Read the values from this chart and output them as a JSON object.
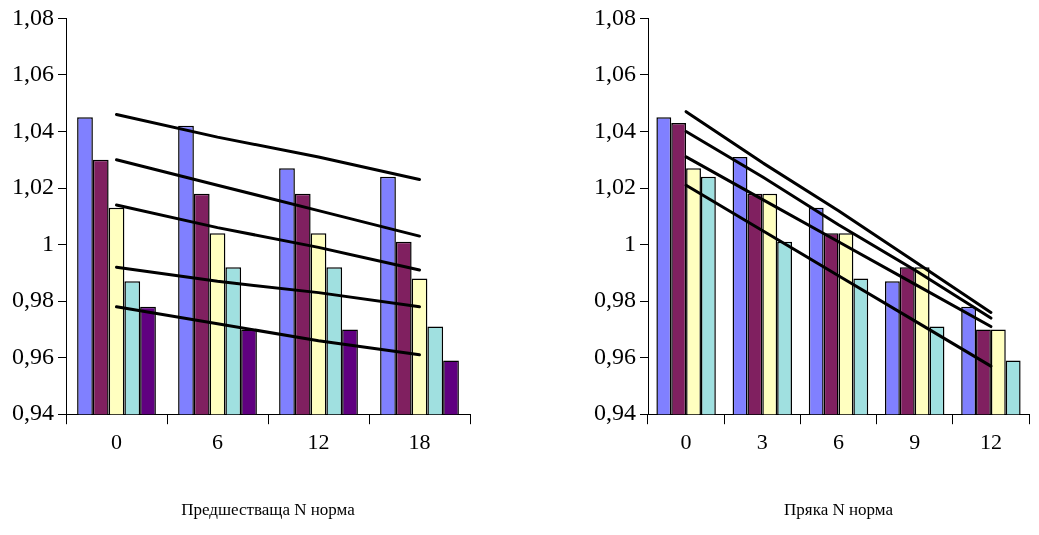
{
  "chart_data": [
    {
      "type": "bar",
      "xlabel": "Предшестваща N норма",
      "categories": [
        "0",
        "6",
        "12",
        "18"
      ],
      "ylim": [
        0.94,
        1.08
      ],
      "yticks": [
        {
          "value": 0.94,
          "label": "0,94"
        },
        {
          "value": 0.96,
          "label": "0,96"
        },
        {
          "value": 0.98,
          "label": "0,98"
        },
        1,
        {
          "value": 1.02,
          "label": "1,02"
        },
        {
          "value": 1.04,
          "label": "1,04"
        },
        {
          "value": 1.06,
          "label": "1,06"
        },
        {
          "value": 1.08,
          "label": "1,08"
        }
      ],
      "grid": false,
      "legend": false,
      "series": [
        {
          "color": "#8080ff",
          "values": [
            1.045,
            1.042,
            1.027,
            1.024
          ]
        },
        {
          "color": "#802060",
          "values": [
            1.03,
            1.018,
            1.018,
            1.001
          ]
        },
        {
          "color": "#ffffc0",
          "values": [
            1.013,
            1.004,
            1.004,
            0.988
          ]
        },
        {
          "color": "#a0e0e0",
          "values": [
            0.987,
            0.992,
            0.992,
            0.971
          ]
        },
        {
          "color": "#600080",
          "values": [
            0.978,
            0.97,
            0.97,
            0.959
          ]
        },
        {
          "type": "line",
          "color": "#000000",
          "values": [
            1.046,
            1.038,
            1.031,
            1.023
          ]
        },
        {
          "type": "line",
          "color": "#000000",
          "values": [
            1.03,
            1.021,
            1.012,
            1.003
          ]
        },
        {
          "type": "line",
          "color": "#000000",
          "values": [
            1.014,
            1.006,
            0.999,
            0.991
          ]
        },
        {
          "type": "line",
          "color": "#000000",
          "values": [
            0.992,
            0.987,
            0.983,
            0.978
          ]
        },
        {
          "type": "line",
          "color": "#000000",
          "values": [
            0.978,
            0.972,
            0.966,
            0.961
          ]
        }
      ]
    },
    {
      "type": "bar",
      "xlabel": "Пряка N норма",
      "categories": [
        "0",
        "3",
        "6",
        "9",
        "12"
      ],
      "ylim": [
        0.94,
        1.08
      ],
      "yticks": [
        {
          "value": 0.94,
          "label": "0,94"
        },
        {
          "value": 0.96,
          "label": "0,96"
        },
        {
          "value": 0.98,
          "label": "0,98"
        },
        1,
        {
          "value": 1.02,
          "label": "1,02"
        },
        {
          "value": 1.04,
          "label": "1,04"
        },
        {
          "value": 1.06,
          "label": "1,06"
        },
        {
          "value": 1.08,
          "label": "1,08"
        }
      ],
      "grid": false,
      "legend": false,
      "series": [
        {
          "color": "#8080ff",
          "values": [
            1.045,
            1.031,
            1.013,
            0.987,
            0.978
          ]
        },
        {
          "color": "#802060",
          "values": [
            1.043,
            1.018,
            1.004,
            0.992,
            0.97
          ]
        },
        {
          "color": "#ffffc0",
          "values": [
            1.027,
            1.018,
            1.004,
            0.992,
            0.97
          ]
        },
        {
          "color": "#a0e0e0",
          "values": [
            1.024,
            1.001,
            0.988,
            0.971,
            0.959
          ]
        },
        {
          "type": "line",
          "color": "#000000",
          "values": [
            1.047,
            1.029,
            1.012,
            0.994,
            0.976
          ]
        },
        {
          "type": "line",
          "color": "#000000",
          "values": [
            1.04,
            1.024,
            1.007,
            0.991,
            0.974
          ]
        },
        {
          "type": "line",
          "color": "#000000",
          "values": [
            1.031,
            1.016,
            1.001,
            0.986,
            0.971
          ]
        },
        {
          "type": "line",
          "color": "#000000",
          "values": [
            1.021,
            1.005,
            0.989,
            0.973,
            0.957
          ]
        }
      ]
    }
  ]
}
